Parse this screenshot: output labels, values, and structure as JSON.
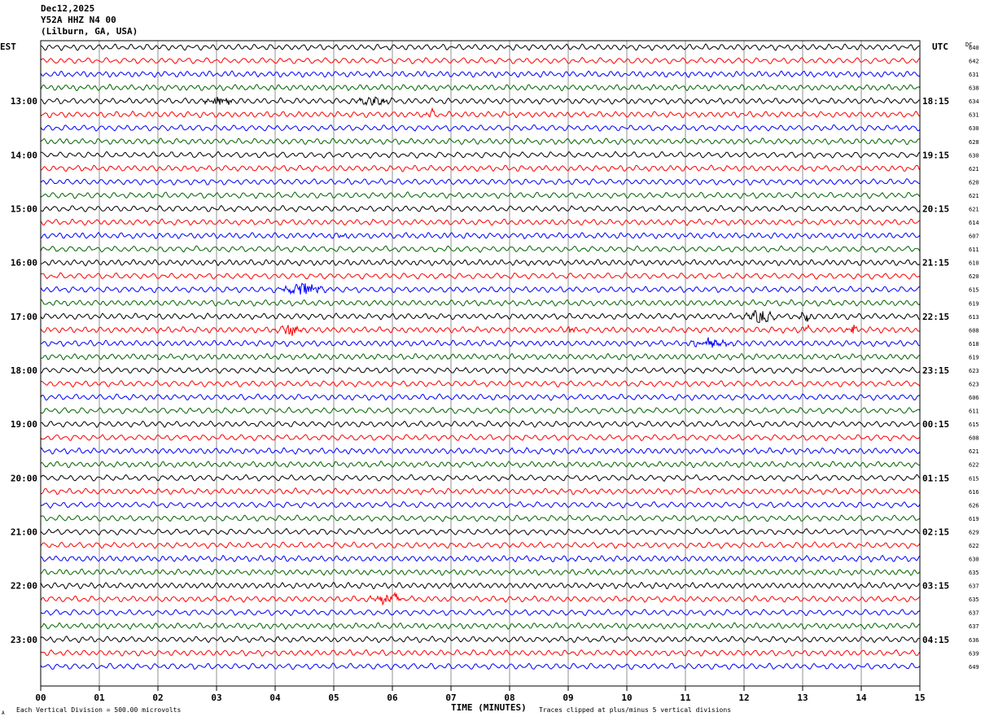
{
  "header": {
    "date": "Dec12,2025",
    "station": "Y52A HHZ N4 00",
    "location": "(Lilburn, GA, USA)"
  },
  "chart_data": {
    "type": "line",
    "title": "",
    "xlabel": "TIME (MINUTES)",
    "xlim": [
      0,
      15
    ],
    "x_ticks": [
      "00",
      "01",
      "02",
      "03",
      "04",
      "05",
      "06",
      "07",
      "08",
      "09",
      "10",
      "11",
      "12",
      "13",
      "14",
      "15"
    ],
    "left_axis_title": "EST",
    "right_axis_title": "UTC",
    "dc_title": "DC",
    "grid": true,
    "trace_colors": [
      "#000000",
      "#ff0000",
      "#0000ff",
      "#006400"
    ],
    "left_time_labels": [
      {
        "trace": 4,
        "label": "13:00"
      },
      {
        "trace": 8,
        "label": "14:00"
      },
      {
        "trace": 12,
        "label": "15:00"
      },
      {
        "trace": 16,
        "label": "16:00"
      },
      {
        "trace": 20,
        "label": "17:00"
      },
      {
        "trace": 24,
        "label": "18:00"
      },
      {
        "trace": 28,
        "label": "19:00"
      },
      {
        "trace": 32,
        "label": "20:00"
      },
      {
        "trace": 36,
        "label": "21:00"
      },
      {
        "trace": 40,
        "label": "22:00"
      },
      {
        "trace": 44,
        "label": "23:00"
      }
    ],
    "right_time_labels": [
      {
        "trace": 4,
        "label": "18:15"
      },
      {
        "trace": 8,
        "label": "19:15"
      },
      {
        "trace": 12,
        "label": "20:15"
      },
      {
        "trace": 16,
        "label": "21:15"
      },
      {
        "trace": 20,
        "label": "22:15"
      },
      {
        "trace": 24,
        "label": "23:15"
      },
      {
        "trace": 28,
        "label": "00:15"
      },
      {
        "trace": 32,
        "label": "01:15"
      },
      {
        "trace": 36,
        "label": "02:15"
      },
      {
        "trace": 40,
        "label": "03:15"
      },
      {
        "trace": 44,
        "label": "04:15"
      }
    ],
    "dc_values": [
      "640",
      "642",
      "631",
      "638",
      "634",
      "631",
      "630",
      "628",
      "630",
      "621",
      "620",
      "621",
      "621",
      "614",
      "607",
      "611",
      "610",
      "620",
      "615",
      "619",
      "613",
      "608",
      "618",
      "619",
      "623",
      "623",
      "606",
      "611",
      "615",
      "608",
      "621",
      "622",
      "615",
      "616",
      "626",
      "619",
      "629",
      "622",
      "630",
      "635",
      "637",
      "635",
      "637",
      "637",
      "636",
      "639",
      "649"
    ],
    "events": [
      {
        "trace": 4,
        "minute": 3.05,
        "amp": 1.6,
        "dur": 0.35
      },
      {
        "trace": 4,
        "minute": 5.7,
        "amp": 1.4,
        "dur": 0.4
      },
      {
        "trace": 5,
        "minute": 6.65,
        "amp": 2.0,
        "dur": 0.12
      },
      {
        "trace": 14,
        "minute": 5.15,
        "amp": 1.2,
        "dur": 0.15
      },
      {
        "trace": 18,
        "minute": 4.5,
        "amp": 2.6,
        "dur": 0.45
      },
      {
        "trace": 20,
        "minute": 12.3,
        "amp": 2.4,
        "dur": 0.3
      },
      {
        "trace": 20,
        "minute": 13.05,
        "amp": 2.0,
        "dur": 0.12
      },
      {
        "trace": 21,
        "minute": 4.25,
        "amp": 2.0,
        "dur": 0.3
      },
      {
        "trace": 21,
        "minute": 9.05,
        "amp": 1.8,
        "dur": 0.1
      },
      {
        "trace": 21,
        "minute": 13.05,
        "amp": 1.8,
        "dur": 0.1
      },
      {
        "trace": 21,
        "minute": 13.85,
        "amp": 1.8,
        "dur": 0.12
      },
      {
        "trace": 22,
        "minute": 11.4,
        "amp": 1.6,
        "dur": 0.5
      },
      {
        "trace": 41,
        "minute": 5.95,
        "amp": 2.0,
        "dur": 0.4
      }
    ]
  },
  "footer": {
    "division_note": "Each Vertical Division =  500.00 microvolts",
    "clip_note": "Traces clipped at plus/minus 5 vertical divisions",
    "corner_mark": "A"
  }
}
